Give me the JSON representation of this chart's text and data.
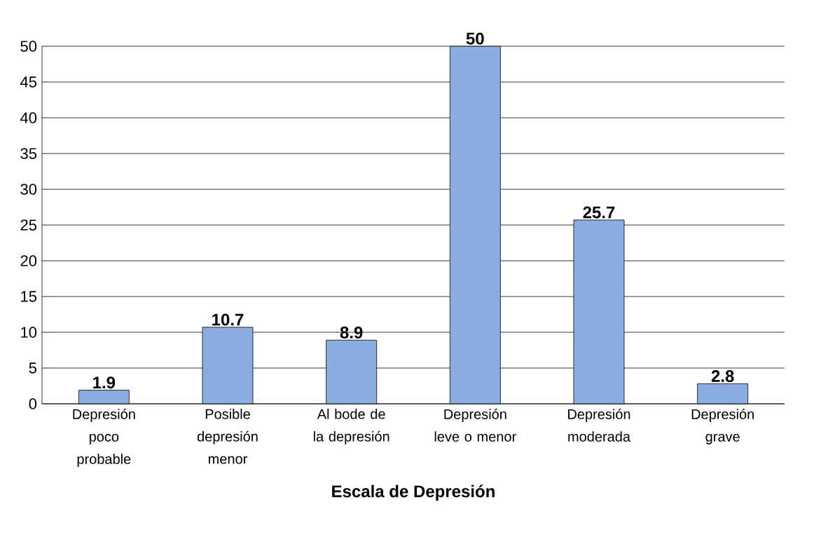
{
  "chart_data": {
    "type": "bar",
    "xlabel": "Escala de Depresión",
    "categories": [
      "Depresión poco probable",
      "Posible depresión menor",
      "Al bode de la depresión",
      "Depresión leve o menor",
      "Depresión moderada",
      "Depresión grave"
    ],
    "values": [
      1.9,
      10.7,
      8.9,
      50,
      25.7,
      2.8
    ],
    "color": "#8aaee0",
    "data_labels": true,
    "ylim": [
      0,
      50
    ],
    "yticks": [
      0,
      5,
      10,
      15,
      20,
      25,
      30,
      35,
      40,
      45,
      50
    ],
    "grid": "y"
  }
}
